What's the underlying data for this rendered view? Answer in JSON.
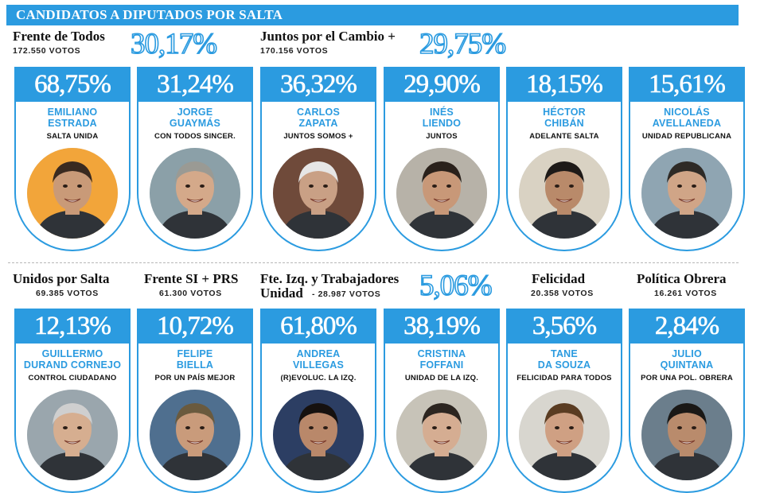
{
  "header": {
    "title": "CANDIDATOS A DIPUTADOS POR SALTA"
  },
  "colors": {
    "accent": "#2b9be0"
  },
  "parties": [
    {
      "name": "Frente de Todos",
      "votes": "172.550 VOTOS",
      "pct": "30,17%"
    },
    {
      "name": "Juntos por el Cambio +",
      "votes": "170.156 VOTOS",
      "pct": "29,75%"
    },
    {
      "name": "Unidos por Salta",
      "votes": "69.385 VOTOS"
    },
    {
      "name": "Frente SI + PRS",
      "votes": "61.300 VOTOS"
    },
    {
      "name_line1": "Fte. Izq. y Trabajadores",
      "name_line2": "Unidad",
      "votes": "- 28.987 VOTOS",
      "pct": "5,06%"
    },
    {
      "name": "Felicidad",
      "votes": "20.358 VOTOS"
    },
    {
      "name": "Política Obrera",
      "votes": "16.261 VOTOS"
    }
  ],
  "candidates": [
    {
      "pct": "68,75%",
      "first": "EMILIANO",
      "last": "ESTRADA",
      "list": "SALTA UNIDA",
      "photo": "photo-emiliano-estrada"
    },
    {
      "pct": "31,24%",
      "first": "JORGE",
      "last": "GUAYMÁS",
      "list": "CON TODOS SINCER.",
      "photo": "photo-jorge-guaymas"
    },
    {
      "pct": "36,32%",
      "first": "CARLOS",
      "last": "ZAPATA",
      "list": "JUNTOS SOMOS +",
      "photo": "photo-carlos-zapata"
    },
    {
      "pct": "29,90%",
      "first": "INÉS",
      "last": "LIENDO",
      "list": "JUNTOS",
      "photo": "photo-ines-liendo"
    },
    {
      "pct": "18,15%",
      "first": "HÉCTOR",
      "last": "CHIBÁN",
      "list": "ADELANTE SALTA",
      "photo": "photo-hector-chiban"
    },
    {
      "pct": "15,61%",
      "first": "NICOLÁS",
      "last": "AVELLANEDA",
      "list": "UNIDAD REPUBLICANA",
      "photo": "photo-nicolas-avellaneda"
    },
    {
      "pct": "12,13%",
      "first": "GUILLERMO",
      "last": "DURAND CORNEJO",
      "list": "CONTROL CIUDADANO",
      "photo": "photo-guillermo-durand-cornejo"
    },
    {
      "pct": "10,72%",
      "first": "FELIPE",
      "last": "BIELLA",
      "list": "POR UN PAÍS MEJOR",
      "photo": "photo-felipe-biella"
    },
    {
      "pct": "61,80%",
      "first": "ANDREA",
      "last": "VILLEGAS",
      "list": "(R)EVOLUC. LA IZQ.",
      "photo": "photo-andrea-villegas"
    },
    {
      "pct": "38,19%",
      "first": "CRISTINA",
      "last": "FOFFANI",
      "list": "UNIDAD DE LA IZQ.",
      "photo": "photo-cristina-foffani"
    },
    {
      "pct": "3,56%",
      "first": "TANE",
      "last": "DA SOUZA",
      "list": "FELICIDAD PARA TODOS",
      "photo": "photo-tane-da-souza"
    },
    {
      "pct": "2,84%",
      "first": "JULIO",
      "last": "QUINTANA",
      "list": "POR UNA POL. OBRERA",
      "photo": "photo-julio-quintana"
    }
  ]
}
